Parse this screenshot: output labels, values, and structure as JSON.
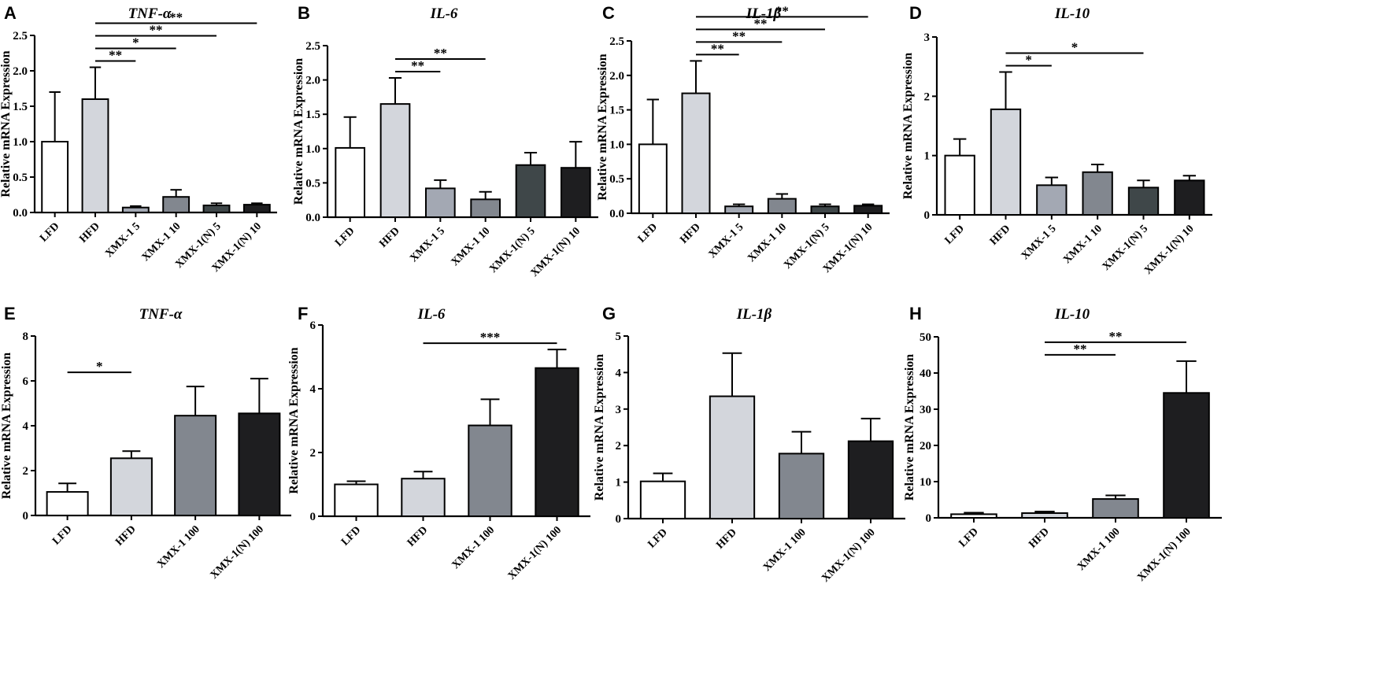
{
  "figure": {
    "panel_count": 8
  },
  "chart_data": [
    {
      "type": "bar",
      "panel": "A",
      "title": "TNF-α",
      "ylabel": "Relative mRNA Expression",
      "ylim": [
        0,
        2.5
      ],
      "yticks": [
        "0.0",
        "0.5",
        "1.0",
        "1.5",
        "2.0",
        "2.5"
      ],
      "categories": [
        "LFD",
        "HFD",
        "XMX-1  5",
        "XMX-1 10",
        "XMX-1(N) 5",
        "XMX-1(N) 10"
      ],
      "values": [
        1.0,
        1.6,
        0.07,
        0.22,
        0.1,
        0.11
      ],
      "errors": [
        0.7,
        0.45,
        0.02,
        0.1,
        0.03,
        0.02
      ],
      "colors": [
        "#ffffff",
        "#d3d6dc",
        "#a3a8b3",
        "#82878f",
        "#3f4749",
        "#1e1e20"
      ],
      "significance": [
        {
          "from": 1,
          "to": 2,
          "label": "**"
        },
        {
          "from": 1,
          "to": 3,
          "label": "*"
        },
        {
          "from": 1,
          "to": 4,
          "label": "**"
        },
        {
          "from": 1,
          "to": 5,
          "label": "**"
        }
      ]
    },
    {
      "type": "bar",
      "panel": "B",
      "title": "IL-6",
      "ylabel": "Relative mRNA Expression",
      "ylim": [
        0,
        2.5
      ],
      "yticks": [
        "0.0",
        "0.5",
        "1.0",
        "1.5",
        "2.0",
        "2.5"
      ],
      "categories": [
        "LFD",
        "HFD",
        "XMX-1  5",
        "XMX-1 10",
        "XMX-1(N) 5",
        "XMX-1(N) 10"
      ],
      "values": [
        1.01,
        1.65,
        0.42,
        0.26,
        0.76,
        0.72
      ],
      "errors": [
        0.45,
        0.38,
        0.12,
        0.11,
        0.18,
        0.38
      ],
      "colors": [
        "#ffffff",
        "#d3d6dc",
        "#a3a8b3",
        "#82878f",
        "#3f4749",
        "#1e1e20"
      ],
      "significance": [
        {
          "from": 1,
          "to": 2,
          "label": "**"
        },
        {
          "from": 1,
          "to": 3,
          "label": "**"
        }
      ]
    },
    {
      "type": "bar",
      "panel": "C",
      "title": "IL-1β",
      "ylabel": "Relative mRNA Expression",
      "ylim": [
        0,
        2.5
      ],
      "yticks": [
        "0.0",
        "0.5",
        "1.0",
        "1.5",
        "2.0",
        "2.5"
      ],
      "categories": [
        "LFD",
        "HFD",
        "XMX-1  5",
        "XMX-1 10",
        "XMX-1(N) 5",
        "XMX-1(N) 10"
      ],
      "values": [
        1.0,
        1.74,
        0.1,
        0.21,
        0.1,
        0.11
      ],
      "errors": [
        0.65,
        0.47,
        0.03,
        0.07,
        0.03,
        0.02
      ],
      "colors": [
        "#ffffff",
        "#d3d6dc",
        "#a3a8b3",
        "#82878f",
        "#3f4749",
        "#1e1e20"
      ],
      "significance": [
        {
          "from": 1,
          "to": 2,
          "label": "**"
        },
        {
          "from": 1,
          "to": 3,
          "label": "**"
        },
        {
          "from": 1,
          "to": 4,
          "label": "**"
        },
        {
          "from": 1,
          "to": 5,
          "label": "**"
        }
      ]
    },
    {
      "type": "bar",
      "panel": "D",
      "title": "IL-10",
      "ylabel": "Relative mRNA Expression",
      "ylim": [
        0,
        3
      ],
      "yticks": [
        "0",
        "1",
        "2",
        "3"
      ],
      "categories": [
        "LFD",
        "HFD",
        "XMX-1  5",
        "XMX-1 10",
        "XMX-1(N) 5",
        "XMX-1(N) 10"
      ],
      "values": [
        1.0,
        1.78,
        0.5,
        0.72,
        0.46,
        0.58
      ],
      "errors": [
        0.28,
        0.63,
        0.13,
        0.13,
        0.12,
        0.08
      ],
      "colors": [
        "#ffffff",
        "#d3d6dc",
        "#a3a8b3",
        "#82878f",
        "#3f4749",
        "#1e1e20"
      ],
      "significance": [
        {
          "from": 1,
          "to": 2,
          "label": "*"
        },
        {
          "from": 1,
          "to": 4,
          "label": "*"
        }
      ]
    },
    {
      "type": "bar",
      "panel": "E",
      "title": "TNF-α",
      "ylabel": "Relative mRNA Expression",
      "ylim": [
        0,
        8
      ],
      "yticks": [
        "0",
        "2",
        "4",
        "6",
        "8"
      ],
      "categories": [
        "LFD",
        "HFD",
        "XMX-1 100",
        "XMX-1(N) 100"
      ],
      "values": [
        1.05,
        2.55,
        4.45,
        4.55
      ],
      "errors": [
        0.38,
        0.32,
        1.3,
        1.55
      ],
      "colors": [
        "#ffffff",
        "#d3d6dc",
        "#82878f",
        "#1e1e20"
      ],
      "significance": [
        {
          "from": 0,
          "to": 1,
          "label": "*"
        }
      ]
    },
    {
      "type": "bar",
      "panel": "F",
      "title": "IL-6",
      "ylabel": "Relative mRNA Expression",
      "ylim": [
        0,
        6
      ],
      "yticks": [
        "0",
        "2",
        "4",
        "6"
      ],
      "categories": [
        "LFD",
        "HFD",
        "XMX-1 100",
        "XMX-1(N) 100"
      ],
      "values": [
        1.0,
        1.18,
        2.85,
        4.65
      ],
      "errors": [
        0.1,
        0.22,
        0.82,
        0.58
      ],
      "colors": [
        "#ffffff",
        "#d3d6dc",
        "#82878f",
        "#1e1e20"
      ],
      "significance": [
        {
          "from": 1,
          "to": 3,
          "label": "***"
        }
      ]
    },
    {
      "type": "bar",
      "panel": "G",
      "title": "IL-1β",
      "ylabel": "Relative mRNA Expression",
      "ylim": [
        0,
        5
      ],
      "yticks": [
        "0",
        "1",
        "2",
        "3",
        "4",
        "5"
      ],
      "categories": [
        "LFD",
        "HFD",
        "XMX-1 100",
        "XMX-1(N) 100"
      ],
      "values": [
        1.02,
        3.35,
        1.78,
        2.12
      ],
      "errors": [
        0.22,
        1.18,
        0.6,
        0.62
      ],
      "colors": [
        "#ffffff",
        "#d3d6dc",
        "#82878f",
        "#1e1e20"
      ],
      "significance": []
    },
    {
      "type": "bar",
      "panel": "H",
      "title": "IL-10",
      "ylabel": "Relative mRNA Expression",
      "ylim": [
        0,
        50
      ],
      "yticks": [
        "0",
        "10",
        "20",
        "30",
        "40",
        "50"
      ],
      "categories": [
        "LFD",
        "HFD",
        "XMX-1 100",
        "XMX-1(N) 100"
      ],
      "values": [
        1.0,
        1.3,
        5.2,
        34.5
      ],
      "errors": [
        0.4,
        0.45,
        1.0,
        8.8
      ],
      "colors": [
        "#ffffff",
        "#d3d6dc",
        "#82878f",
        "#1e1e20"
      ],
      "significance": [
        {
          "from": 1,
          "to": 2,
          "label": "**"
        },
        {
          "from": 1,
          "to": 3,
          "label": "**"
        }
      ]
    }
  ]
}
